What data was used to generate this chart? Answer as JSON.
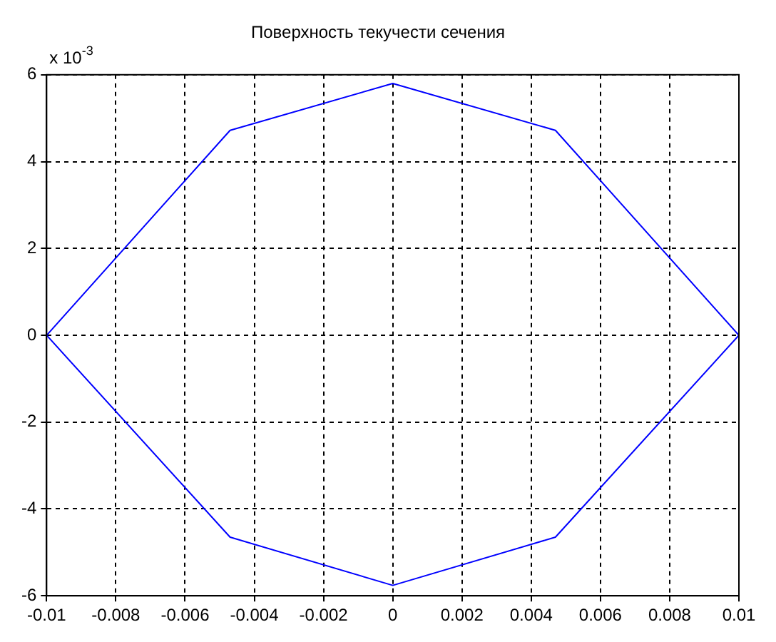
{
  "chart_data": {
    "type": "line",
    "title": "Поверхность текучести сечения",
    "annotations": [
      "x 10$^{-3}$"
    ],
    "x": [
      -0.01,
      -0.0047,
      0,
      0.0047,
      0.01
    ],
    "series": [
      {
        "color": "#0000ff",
        "values": [
          0,
          4.72,
          5.8,
          4.72,
          0
        ]
      },
      {
        "color": "#0000ff",
        "values": [
          0,
          -4.65,
          -5.76,
          -4.65,
          0
        ]
      }
    ],
    "xlim": [
      -0.01,
      0.01
    ],
    "xticks": [
      -0.01,
      -0.008,
      -0.006,
      -0.004,
      -0.002,
      0,
      0.002,
      0.004,
      0.006,
      0.008,
      0.01
    ],
    "ylim": [
      -6,
      6
    ],
    "yticks": [
      -6,
      -4,
      -2,
      0,
      2,
      4,
      6
    ],
    "grid": true,
    "legend": false,
    "marker": "none",
    "line_style": "solid"
  }
}
